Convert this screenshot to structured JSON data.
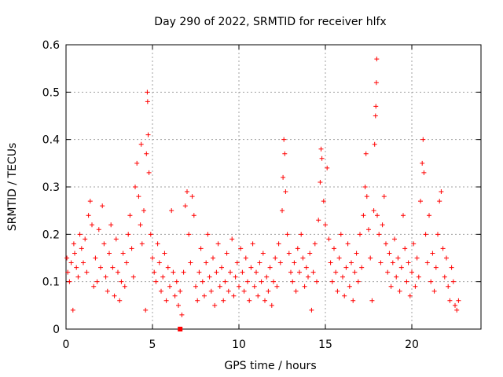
{
  "chart_data": {
    "type": "scatter",
    "title": "Day 290 of 2022, SRMTID for receiver hlfx",
    "xlabel": "GPS time / hours",
    "ylabel": "SRMTID / TECUs",
    "xlim": [
      0,
      24
    ],
    "ylim": [
      0,
      0.6
    ],
    "xticks": [
      0,
      5,
      10,
      15,
      20
    ],
    "yticks": [
      0,
      0.1,
      0.2,
      0.3,
      0.4,
      0.5,
      0.6
    ],
    "xtick_labels": [
      "0",
      "5",
      "10",
      "15",
      "20"
    ],
    "ytick_labels": [
      "0",
      "0.1",
      "0.2",
      "0.3",
      "0.4",
      "0.5",
      "0.6"
    ],
    "grid": true,
    "marker": "+",
    "color": "#ff0000",
    "x_range_data": [
      0,
      22.7
    ],
    "baseline_marker": {
      "x": 6.6,
      "y": 0.0
    },
    "series": [
      {
        "name": "SRMTID",
        "points": [
          [
            0.05,
            0.15
          ],
          [
            0.1,
            0.12
          ],
          [
            0.2,
            0.1
          ],
          [
            0.3,
            0.14
          ],
          [
            0.4,
            0.04
          ],
          [
            0.45,
            0.18
          ],
          [
            0.5,
            0.16
          ],
          [
            0.6,
            0.13
          ],
          [
            0.7,
            0.11
          ],
          [
            0.8,
            0.2
          ],
          [
            0.9,
            0.17
          ],
          [
            1.0,
            0.14
          ],
          [
            1.1,
            0.19
          ],
          [
            1.2,
            0.12
          ],
          [
            1.3,
            0.24
          ],
          [
            1.4,
            0.27
          ],
          [
            1.5,
            0.22
          ],
          [
            1.6,
            0.09
          ],
          [
            1.7,
            0.15
          ],
          [
            1.8,
            0.1
          ],
          [
            1.9,
            0.21
          ],
          [
            2.0,
            0.13
          ],
          [
            2.1,
            0.26
          ],
          [
            2.2,
            0.18
          ],
          [
            2.3,
            0.11
          ],
          [
            2.4,
            0.08
          ],
          [
            2.5,
            0.16
          ],
          [
            2.6,
            0.22
          ],
          [
            2.7,
            0.13
          ],
          [
            2.8,
            0.07
          ],
          [
            2.9,
            0.19
          ],
          [
            3.0,
            0.12
          ],
          [
            3.1,
            0.06
          ],
          [
            3.2,
            0.1
          ],
          [
            3.3,
            0.16
          ],
          [
            3.4,
            0.09
          ],
          [
            3.5,
            0.14
          ],
          [
            3.6,
            0.2
          ],
          [
            3.7,
            0.24
          ],
          [
            3.8,
            0.17
          ],
          [
            3.9,
            0.11
          ],
          [
            4.0,
            0.3
          ],
          [
            4.1,
            0.35
          ],
          [
            4.2,
            0.28
          ],
          [
            4.3,
            0.22
          ],
          [
            4.35,
            0.39
          ],
          [
            4.4,
            0.18
          ],
          [
            4.5,
            0.25
          ],
          [
            4.6,
            0.04
          ],
          [
            4.65,
            0.37
          ],
          [
            4.7,
            0.5
          ],
          [
            4.72,
            0.48
          ],
          [
            4.75,
            0.41
          ],
          [
            4.8,
            0.33
          ],
          [
            4.9,
            0.2
          ],
          [
            5.0,
            0.15
          ],
          [
            5.1,
            0.12
          ],
          [
            5.2,
            0.1
          ],
          [
            5.3,
            0.18
          ],
          [
            5.4,
            0.14
          ],
          [
            5.5,
            0.08
          ],
          [
            5.6,
            0.11
          ],
          [
            5.7,
            0.16
          ],
          [
            5.8,
            0.06
          ],
          [
            5.9,
            0.13
          ],
          [
            6.0,
            0.09
          ],
          [
            6.1,
            0.25
          ],
          [
            6.2,
            0.12
          ],
          [
            6.3,
            0.07
          ],
          [
            6.4,
            0.1
          ],
          [
            6.5,
            0.05
          ],
          [
            6.6,
            0.08
          ],
          [
            6.7,
            0.03
          ],
          [
            6.8,
            0.12
          ],
          [
            6.9,
            0.26
          ],
          [
            7.0,
            0.29
          ],
          [
            7.1,
            0.2
          ],
          [
            7.2,
            0.14
          ],
          [
            7.3,
            0.28
          ],
          [
            7.4,
            0.24
          ],
          [
            7.5,
            0.09
          ],
          [
            7.6,
            0.06
          ],
          [
            7.7,
            0.12
          ],
          [
            7.8,
            0.17
          ],
          [
            7.9,
            0.1
          ],
          [
            8.0,
            0.07
          ],
          [
            8.1,
            0.14
          ],
          [
            8.2,
            0.2
          ],
          [
            8.3,
            0.11
          ],
          [
            8.4,
            0.08
          ],
          [
            8.5,
            0.15
          ],
          [
            8.6,
            0.05
          ],
          [
            8.7,
            0.12
          ],
          [
            8.8,
            0.18
          ],
          [
            8.9,
            0.09
          ],
          [
            9.0,
            0.13
          ],
          [
            9.1,
            0.06
          ],
          [
            9.2,
            0.1
          ],
          [
            9.3,
            0.16
          ],
          [
            9.4,
            0.08
          ],
          [
            9.5,
            0.12
          ],
          [
            9.6,
            0.19
          ],
          [
            9.7,
            0.07
          ],
          [
            9.8,
            0.11
          ],
          [
            9.9,
            0.14
          ],
          [
            10.0,
            0.09
          ],
          [
            10.1,
            0.17
          ],
          [
            10.2,
            0.12
          ],
          [
            10.3,
            0.08
          ],
          [
            10.4,
            0.15
          ],
          [
            10.5,
            0.1
          ],
          [
            10.6,
            0.06
          ],
          [
            10.7,
            0.13
          ],
          [
            10.8,
            0.18
          ],
          [
            10.9,
            0.09
          ],
          [
            11.0,
            0.12
          ],
          [
            11.1,
            0.07
          ],
          [
            11.2,
            0.14
          ],
          [
            11.3,
            0.1
          ],
          [
            11.4,
            0.16
          ],
          [
            11.5,
            0.06
          ],
          [
            11.6,
            0.11
          ],
          [
            11.7,
            0.08
          ],
          [
            11.8,
            0.13
          ],
          [
            11.9,
            0.05
          ],
          [
            12.0,
            0.1
          ],
          [
            12.1,
            0.15
          ],
          [
            12.2,
            0.09
          ],
          [
            12.3,
            0.18
          ],
          [
            12.4,
            0.14
          ],
          [
            12.5,
            0.25
          ],
          [
            12.55,
            0.32
          ],
          [
            12.6,
            0.4
          ],
          [
            12.65,
            0.37
          ],
          [
            12.7,
            0.29
          ],
          [
            12.8,
            0.2
          ],
          [
            12.9,
            0.16
          ],
          [
            13.0,
            0.12
          ],
          [
            13.1,
            0.1
          ],
          [
            13.2,
            0.14
          ],
          [
            13.3,
            0.08
          ],
          [
            13.4,
            0.17
          ],
          [
            13.5,
            0.12
          ],
          [
            13.6,
            0.2
          ],
          [
            13.7,
            0.15
          ],
          [
            13.8,
            0.09
          ],
          [
            13.9,
            0.13
          ],
          [
            14.0,
            0.11
          ],
          [
            14.1,
            0.16
          ],
          [
            14.2,
            0.04
          ],
          [
            14.3,
            0.12
          ],
          [
            14.4,
            0.18
          ],
          [
            14.5,
            0.1
          ],
          [
            14.6,
            0.23
          ],
          [
            14.7,
            0.31
          ],
          [
            14.75,
            0.38
          ],
          [
            14.8,
            0.36
          ],
          [
            14.9,
            0.27
          ],
          [
            15.0,
            0.22
          ],
          [
            15.1,
            0.34
          ],
          [
            15.2,
            0.19
          ],
          [
            15.3,
            0.14
          ],
          [
            15.4,
            0.1
          ],
          [
            15.5,
            0.17
          ],
          [
            15.6,
            0.12
          ],
          [
            15.7,
            0.08
          ],
          [
            15.8,
            0.15
          ],
          [
            15.9,
            0.2
          ],
          [
            16.0,
            0.11
          ],
          [
            16.1,
            0.07
          ],
          [
            16.2,
            0.13
          ],
          [
            16.3,
            0.18
          ],
          [
            16.4,
            0.09
          ],
          [
            16.5,
            0.14
          ],
          [
            16.6,
            0.06
          ],
          [
            16.7,
            0.12
          ],
          [
            16.8,
            0.16
          ],
          [
            16.9,
            0.1
          ],
          [
            17.0,
            0.2
          ],
          [
            17.1,
            0.13
          ],
          [
            17.2,
            0.24
          ],
          [
            17.3,
            0.3
          ],
          [
            17.35,
            0.37
          ],
          [
            17.4,
            0.28
          ],
          [
            17.5,
            0.21
          ],
          [
            17.6,
            0.15
          ],
          [
            17.7,
            0.06
          ],
          [
            17.8,
            0.25
          ],
          [
            17.85,
            0.39
          ],
          [
            17.9,
            0.45
          ],
          [
            17.92,
            0.47
          ],
          [
            17.95,
            0.52
          ],
          [
            17.97,
            0.57
          ],
          [
            18.0,
            0.24
          ],
          [
            18.1,
            0.2
          ],
          [
            18.2,
            0.14
          ],
          [
            18.3,
            0.22
          ],
          [
            18.4,
            0.28
          ],
          [
            18.5,
            0.18
          ],
          [
            18.6,
            0.12
          ],
          [
            18.7,
            0.16
          ],
          [
            18.8,
            0.09
          ],
          [
            18.9,
            0.14
          ],
          [
            19.0,
            0.19
          ],
          [
            19.1,
            0.11
          ],
          [
            19.2,
            0.15
          ],
          [
            19.3,
            0.08
          ],
          [
            19.4,
            0.13
          ],
          [
            19.5,
            0.24
          ],
          [
            19.6,
            0.17
          ],
          [
            19.7,
            0.1
          ],
          [
            19.8,
            0.14
          ],
          [
            19.9,
            0.07
          ],
          [
            20.0,
            0.12
          ],
          [
            20.1,
            0.18
          ],
          [
            20.2,
            0.09
          ],
          [
            20.3,
            0.15
          ],
          [
            20.4,
            0.11
          ],
          [
            20.5,
            0.27
          ],
          [
            20.6,
            0.35
          ],
          [
            20.65,
            0.4
          ],
          [
            20.7,
            0.33
          ],
          [
            20.8,
            0.2
          ],
          [
            20.9,
            0.14
          ],
          [
            21.0,
            0.24
          ],
          [
            21.1,
            0.1
          ],
          [
            21.2,
            0.16
          ],
          [
            21.3,
            0.08
          ],
          [
            21.4,
            0.13
          ],
          [
            21.5,
            0.2
          ],
          [
            21.6,
            0.27
          ],
          [
            21.7,
            0.29
          ],
          [
            21.8,
            0.17
          ],
          [
            21.9,
            0.11
          ],
          [
            22.0,
            0.15
          ],
          [
            22.1,
            0.09
          ],
          [
            22.2,
            0.06
          ],
          [
            22.3,
            0.13
          ],
          [
            22.4,
            0.1
          ],
          [
            22.5,
            0.05
          ],
          [
            22.6,
            0.04
          ],
          [
            22.7,
            0.06
          ]
        ]
      }
    ]
  }
}
